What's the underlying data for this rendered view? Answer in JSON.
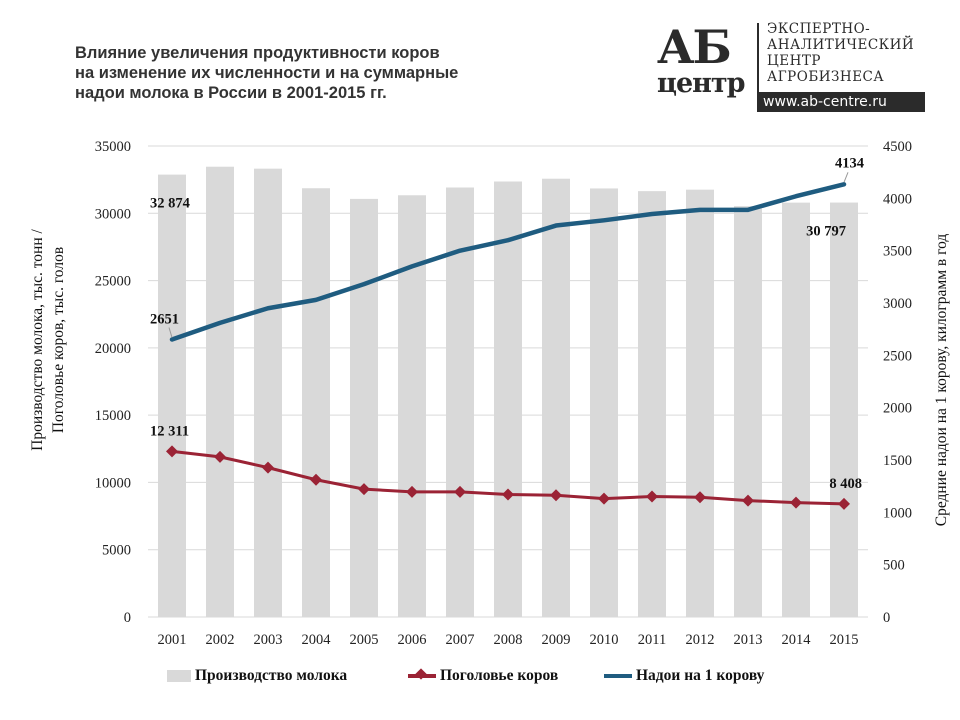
{
  "title_lines": [
    "Влияние увеличения продуктивности коров",
    "на изменение их численности и на суммарные",
    "надои молока в России в 2001-2015 гг."
  ],
  "logo": {
    "mark": "АБ",
    "mark_sub": "центр",
    "text_lines": [
      "ЭКСПЕРТНО-",
      "АНАЛИТИЧЕСКИЙ",
      "ЦЕНТР",
      "АГРОБИЗНЕСА"
    ],
    "url": "www.ab-centre.ru"
  },
  "chart_data": {
    "type": "bar+line",
    "title": "Влияние увеличения продуктивности коров на изменение их численности и на суммарные надои молока в России в 2001-2015 гг.",
    "categories": [
      "2001",
      "2002",
      "2003",
      "2004",
      "2005",
      "2006",
      "2007",
      "2008",
      "2009",
      "2010",
      "2011",
      "2012",
      "2013",
      "2014",
      "2015"
    ],
    "y_left": {
      "label": [
        "Производство молока, тыс. тонн /",
        "Поголовье коров, тыс. голов"
      ],
      "range": [
        0,
        35000
      ],
      "ticks": [
        "0",
        "5000",
        "10000",
        "15000",
        "20000",
        "25000",
        "30000",
        "35000"
      ]
    },
    "y_right": {
      "label": "Средние надои на 1 корову, килограмм в год",
      "range": [
        0,
        4500
      ],
      "ticks": [
        "0",
        "500",
        "1000",
        "1500",
        "2000",
        "2500",
        "3000",
        "3500",
        "4000",
        "4500"
      ]
    },
    "grid": true,
    "legend_position": "bottom",
    "series": [
      {
        "name": "Производство молока",
        "type": "bar",
        "axis": "left",
        "color": "#d9d9d9",
        "values": [
          32874,
          33462,
          33316,
          31861,
          31070,
          31339,
          31915,
          32363,
          32570,
          31847,
          31646,
          31756,
          30529,
          30791,
          30797
        ],
        "labels": [
          {
            "index": 0,
            "text": "32 874"
          },
          {
            "index": 14,
            "text": "30 797"
          }
        ]
      },
      {
        "name": "Поголовье коров",
        "type": "line",
        "marker": "diamond",
        "axis": "left",
        "color": "#9b2335",
        "values": [
          12311,
          11900,
          11100,
          10200,
          9500,
          9300,
          9300,
          9100,
          9050,
          8800,
          8950,
          8900,
          8650,
          8500,
          8408
        ],
        "labels": [
          {
            "index": 0,
            "text": "12 311"
          },
          {
            "index": 14,
            "text": "8 408"
          }
        ]
      },
      {
        "name": "Надои на 1 корову",
        "type": "line",
        "axis": "right",
        "color": "#1f5c80",
        "values": [
          2651,
          2810,
          2950,
          3030,
          3180,
          3350,
          3500,
          3600,
          3740,
          3790,
          3850,
          3890,
          3890,
          4020,
          4134
        ],
        "labels": [
          {
            "index": 0,
            "text": "2651"
          },
          {
            "index": 14,
            "text": "4134"
          }
        ]
      }
    ]
  }
}
